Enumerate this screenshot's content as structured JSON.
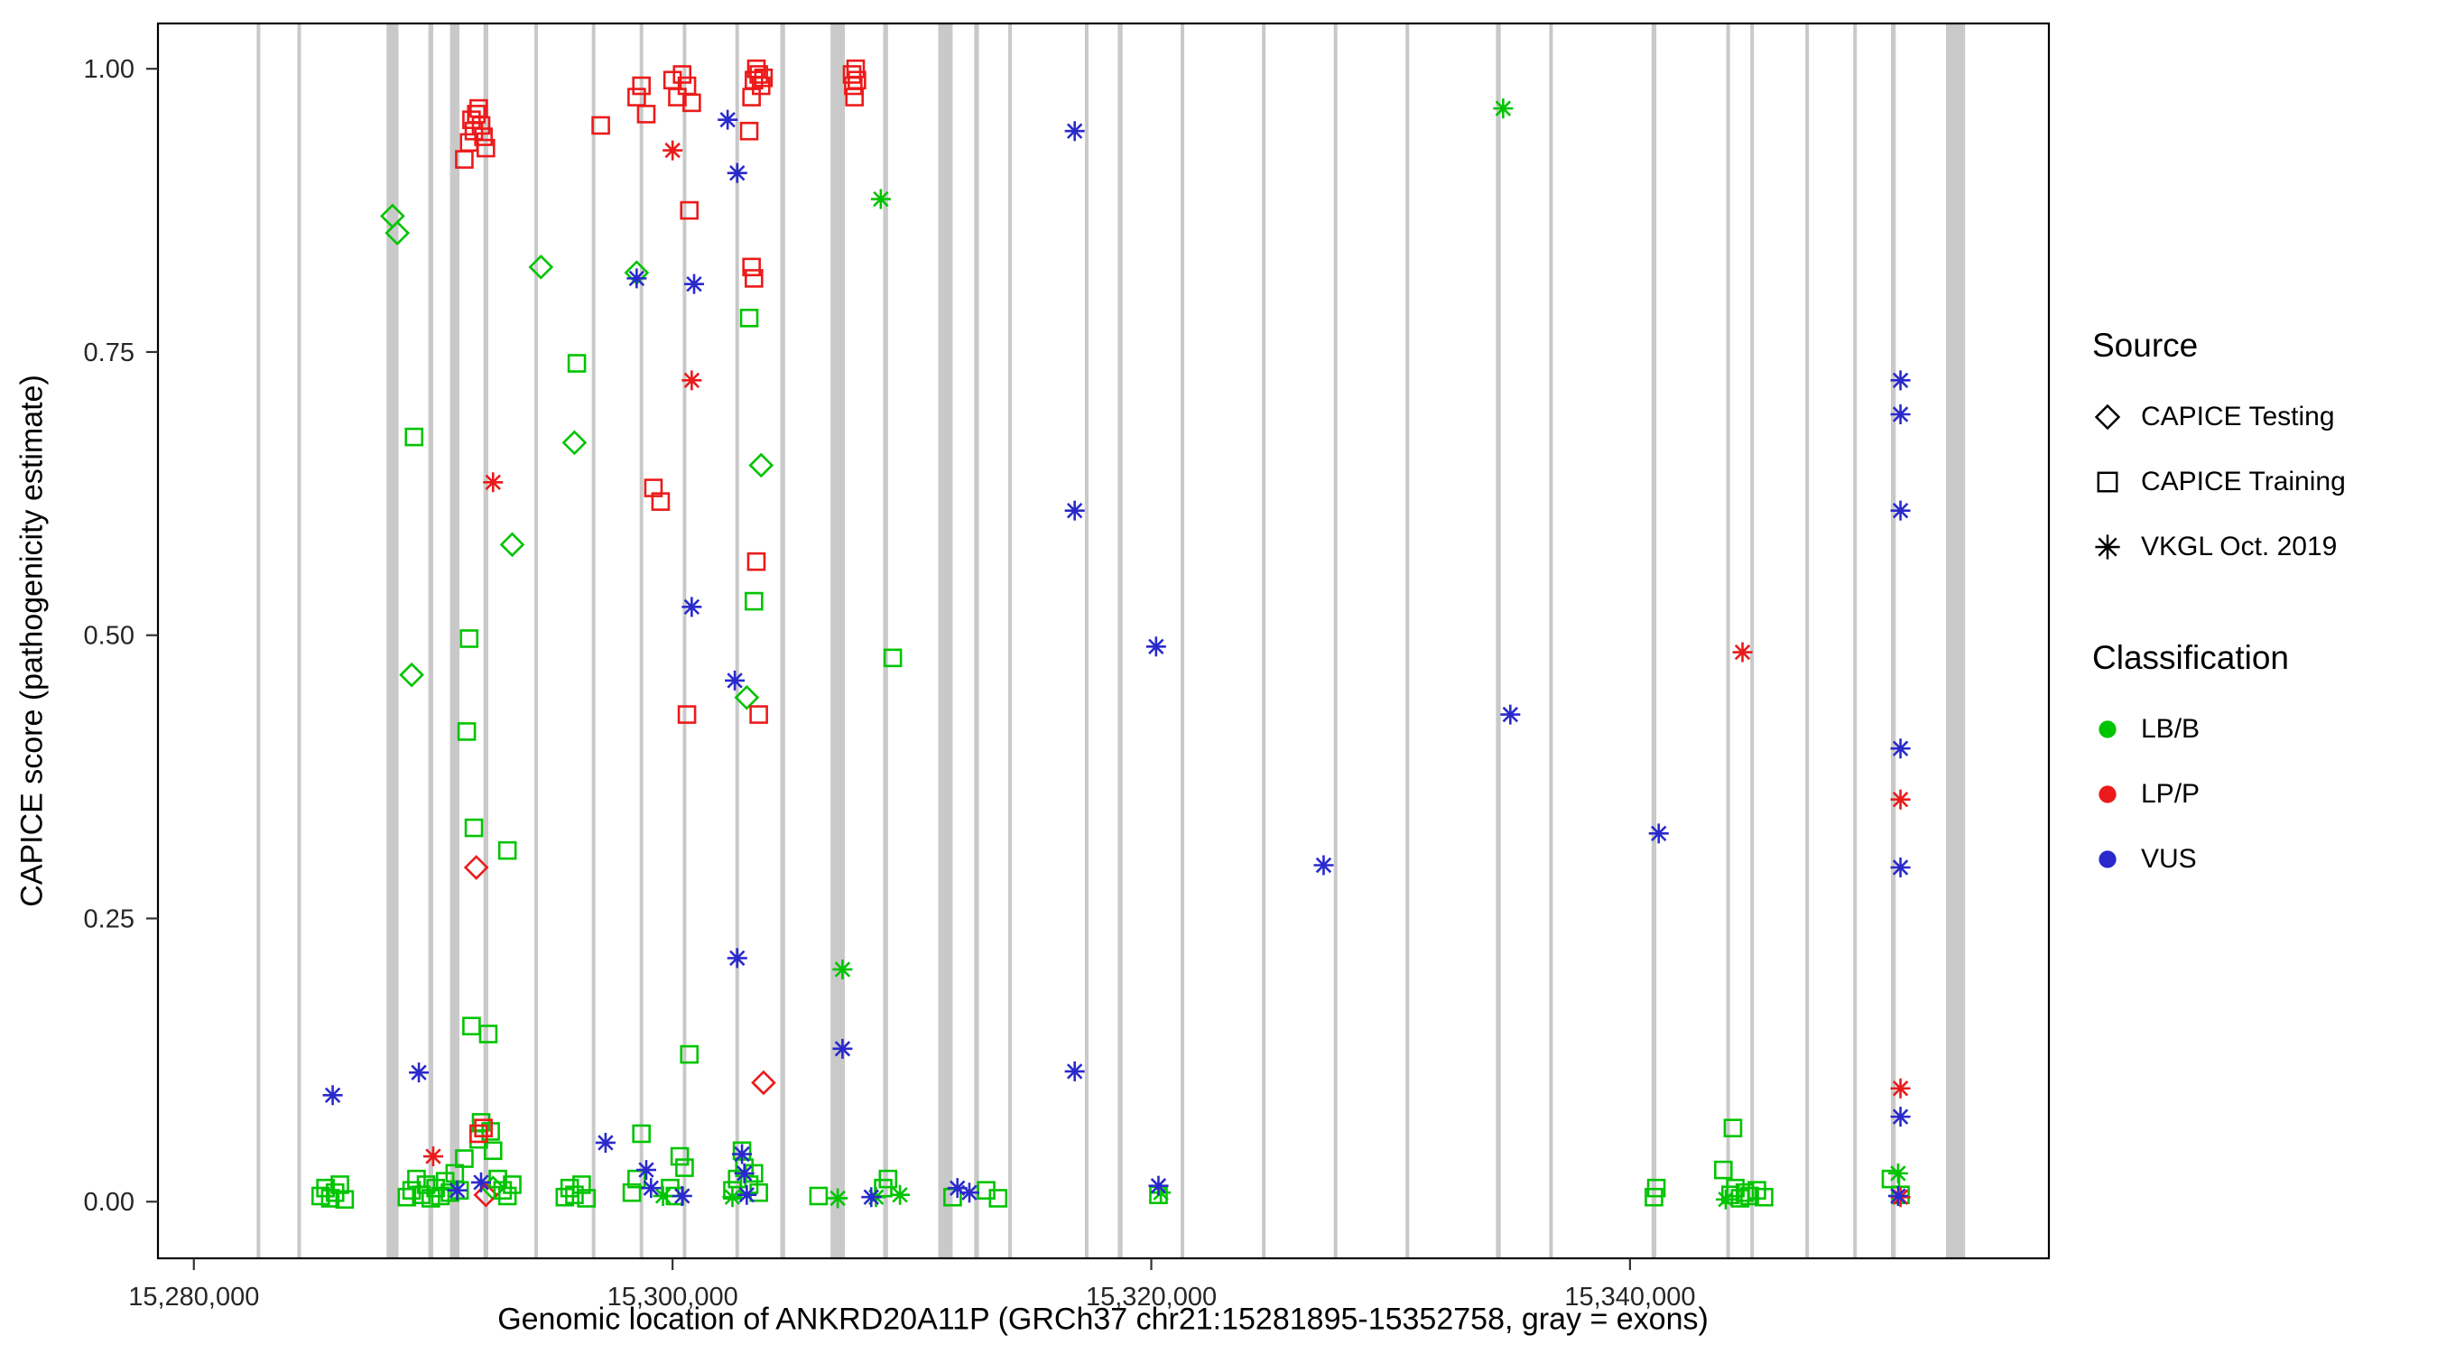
{
  "figure": {
    "xlabel": "Genomic location of ANKRD20A11P (GRCh37 chr21:15281895-15352758, gray = exons)",
    "ylabel": "CAPICE score (pathogenicity estimate)"
  },
  "legend": {
    "source": {
      "title": "Source",
      "items": [
        {
          "label": "CAPICE Testing",
          "shape": "diamond"
        },
        {
          "label": "CAPICE Training",
          "shape": "square"
        },
        {
          "label": "VKGL Oct. 2019",
          "shape": "asterisk"
        }
      ]
    },
    "classification": {
      "title": "Classification",
      "items": [
        {
          "label": "LB/B",
          "color_key": "lbb"
        },
        {
          "label": "LP/P",
          "color_key": "lpp"
        },
        {
          "label": "VUS",
          "color_key": "vus"
        }
      ]
    }
  },
  "chart_data": {
    "type": "scatter",
    "title": "",
    "xlabel": "Genomic location of ANKRD20A11P (GRCh37 chr21:15281895-15352758, gray = exons)",
    "ylabel": "CAPICE score (pathogenicity estimate)",
    "xlim": [
      15278500,
      15357500
    ],
    "ylim": [
      -0.05,
      1.04
    ],
    "grid": false,
    "legend_position": "right",
    "xticks": [
      {
        "v": 15280000,
        "label": "15,280,000"
      },
      {
        "v": 15300000,
        "label": "15,300,000"
      },
      {
        "v": 15320000,
        "label": "15,320,000"
      },
      {
        "v": 15340000,
        "label": "15,340,000"
      }
    ],
    "yticks": [
      {
        "v": 0.0,
        "label": "0.00"
      },
      {
        "v": 0.25,
        "label": "0.25"
      },
      {
        "v": 0.5,
        "label": "0.50"
      },
      {
        "v": 0.75,
        "label": "0.75"
      },
      {
        "v": 1.0,
        "label": "1.00"
      }
    ],
    "colors": {
      "lbb": "#00C400",
      "lpp": "#EC1A1A",
      "vus": "#2A2ACC",
      "exon": "#C9C9C9"
    },
    "exon_note": "gray vertical bars mark exon locations, [position, width_bp]",
    "exons": [
      [
        15282700,
        150
      ],
      [
        15284400,
        150
      ],
      [
        15288300,
        500
      ],
      [
        15289900,
        200
      ],
      [
        15290900,
        400
      ],
      [
        15292200,
        200
      ],
      [
        15294300,
        150
      ],
      [
        15296700,
        150
      ],
      [
        15298700,
        150
      ],
      [
        15300500,
        150
      ],
      [
        15302700,
        150
      ],
      [
        15304600,
        200
      ],
      [
        15306900,
        600
      ],
      [
        15308900,
        200
      ],
      [
        15311400,
        600
      ],
      [
        15312700,
        200
      ],
      [
        15314100,
        150
      ],
      [
        15317300,
        150
      ],
      [
        15318700,
        200
      ],
      [
        15321300,
        150
      ],
      [
        15324700,
        150
      ],
      [
        15327700,
        150
      ],
      [
        15330700,
        150
      ],
      [
        15334500,
        200
      ],
      [
        15336700,
        150
      ],
      [
        15341000,
        200
      ],
      [
        15344100,
        150
      ],
      [
        15345100,
        150
      ],
      [
        15347400,
        150
      ],
      [
        15349400,
        150
      ],
      [
        15351000,
        200
      ],
      [
        15353600,
        800
      ]
    ],
    "series": [
      {
        "name": "CAPICE Testing / LB/B",
        "source": "CAPICE Testing",
        "classification": "LB/B",
        "shape": "diamond",
        "color_key": "lbb",
        "points": [
          [
            15288300,
            0.87
          ],
          [
            15288500,
            0.855
          ],
          [
            15289100,
            0.465
          ],
          [
            15293300,
            0.58
          ],
          [
            15294500,
            0.825
          ],
          [
            15295900,
            0.67
          ],
          [
            15298500,
            0.82
          ],
          [
            15303100,
            0.445
          ],
          [
            15303700,
            0.65
          ],
          [
            15292500,
            0.012
          ]
        ]
      },
      {
        "name": "CAPICE Testing / LP/P",
        "source": "CAPICE Testing",
        "classification": "LP/P",
        "shape": "diamond",
        "color_key": "lpp",
        "points": [
          [
            15291800,
            0.295
          ],
          [
            15303800,
            0.105
          ],
          [
            15292200,
            0.006
          ]
        ]
      },
      {
        "name": "CAPICE Training / LB/B",
        "source": "CAPICE Training",
        "classification": "LB/B",
        "shape": "square",
        "color_key": "lbb",
        "points": [
          [
            15289200,
            0.675
          ],
          [
            15291500,
            0.497
          ],
          [
            15291400,
            0.415
          ],
          [
            15291700,
            0.33
          ],
          [
            15293100,
            0.31
          ],
          [
            15296000,
            0.74
          ],
          [
            15291600,
            0.155
          ],
          [
            15292300,
            0.148
          ],
          [
            15300700,
            0.13
          ],
          [
            15303200,
            0.78
          ],
          [
            15303400,
            0.53
          ],
          [
            15309200,
            0.48
          ],
          [
            15298700,
            0.06
          ],
          [
            15292000,
            0.07
          ],
          [
            15292400,
            0.062
          ],
          [
            15291900,
            0.055
          ],
          [
            15292500,
            0.045
          ],
          [
            15291300,
            0.038
          ],
          [
            15285300,
            0.005
          ],
          [
            15285500,
            0.012
          ],
          [
            15285700,
            0.003
          ],
          [
            15285900,
            0.008
          ],
          [
            15286100,
            0.015
          ],
          [
            15286300,
            0.002
          ],
          [
            15288900,
            0.004
          ],
          [
            15289100,
            0.01
          ],
          [
            15289300,
            0.02
          ],
          [
            15289500,
            0.006
          ],
          [
            15289700,
            0.015
          ],
          [
            15289900,
            0.003
          ],
          [
            15290100,
            0.012
          ],
          [
            15290300,
            0.005
          ],
          [
            15290500,
            0.018
          ],
          [
            15290700,
            0.008
          ],
          [
            15290900,
            0.025
          ],
          [
            15291100,
            0.01
          ],
          [
            15292700,
            0.02
          ],
          [
            15292900,
            0.01
          ],
          [
            15293100,
            0.005
          ],
          [
            15293300,
            0.015
          ],
          [
            15295500,
            0.004
          ],
          [
            15295700,
            0.012
          ],
          [
            15295900,
            0.006
          ],
          [
            15296200,
            0.015
          ],
          [
            15296400,
            0.003
          ],
          [
            15298300,
            0.008
          ],
          [
            15298500,
            0.02
          ],
          [
            15299900,
            0.012
          ],
          [
            15300100,
            0.005
          ],
          [
            15300300,
            0.04
          ],
          [
            15300500,
            0.03
          ],
          [
            15302500,
            0.01
          ],
          [
            15302700,
            0.02
          ],
          [
            15302900,
            0.045
          ],
          [
            15303000,
            0.03
          ],
          [
            15303200,
            0.015
          ],
          [
            15303400,
            0.025
          ],
          [
            15303600,
            0.008
          ],
          [
            15306100,
            0.005
          ],
          [
            15308800,
            0.012
          ],
          [
            15309000,
            0.02
          ],
          [
            15311700,
            0.004
          ],
          [
            15313100,
            0.01
          ],
          [
            15313600,
            0.003
          ],
          [
            15320300,
            0.006
          ],
          [
            15341000,
            0.004
          ],
          [
            15341100,
            0.012
          ],
          [
            15344200,
            0.006
          ],
          [
            15344400,
            0.012
          ],
          [
            15344600,
            0.003
          ],
          [
            15344800,
            0.008
          ],
          [
            15345000,
            0.005
          ],
          [
            15345300,
            0.01
          ],
          [
            15345600,
            0.004
          ],
          [
            15344300,
            0.065
          ],
          [
            15343900,
            0.028
          ],
          [
            15350900,
            0.02
          ],
          [
            15351300,
            0.006
          ]
        ]
      },
      {
        "name": "CAPICE Training / LP/P",
        "source": "CAPICE Training",
        "classification": "LP/P",
        "shape": "square",
        "color_key": "lpp",
        "points": [
          [
            15291300,
            0.92
          ],
          [
            15291500,
            0.935
          ],
          [
            15291600,
            0.955
          ],
          [
            15291700,
            0.945
          ],
          [
            15291800,
            0.96
          ],
          [
            15291900,
            0.965
          ],
          [
            15292000,
            0.95
          ],
          [
            15292100,
            0.94
          ],
          [
            15292200,
            0.93
          ],
          [
            15297000,
            0.95
          ],
          [
            15298500,
            0.975
          ],
          [
            15298700,
            0.985
          ],
          [
            15298900,
            0.96
          ],
          [
            15300000,
            0.99
          ],
          [
            15300200,
            0.975
          ],
          [
            15300400,
            0.995
          ],
          [
            15300600,
            0.985
          ],
          [
            15300800,
            0.97
          ],
          [
            15300700,
            0.875
          ],
          [
            15299200,
            0.63
          ],
          [
            15299500,
            0.618
          ],
          [
            15300600,
            0.43
          ],
          [
            15303200,
            0.945
          ],
          [
            15303300,
            0.975
          ],
          [
            15303400,
            0.99
          ],
          [
            15303500,
            1.0
          ],
          [
            15303600,
            0.995
          ],
          [
            15303700,
            0.985
          ],
          [
            15303800,
            0.992
          ],
          [
            15303300,
            0.825
          ],
          [
            15303400,
            0.815
          ],
          [
            15303500,
            0.565
          ],
          [
            15303600,
            0.43
          ],
          [
            15307500,
            0.995
          ],
          [
            15307550,
            0.985
          ],
          [
            15307600,
            0.975
          ],
          [
            15307650,
            1.0
          ],
          [
            15307700,
            0.99
          ],
          [
            15291900,
            0.06
          ],
          [
            15292100,
            0.065
          ]
        ]
      },
      {
        "name": "VKGL Oct. 2019 / LB/B",
        "source": "VKGL Oct. 2019",
        "classification": "LB/B",
        "shape": "asterisk",
        "color_key": "lbb",
        "points": [
          [
            15308700,
            0.885
          ],
          [
            15334700,
            0.965
          ],
          [
            15307100,
            0.205
          ],
          [
            15299600,
            0.005
          ],
          [
            15302500,
            0.004
          ],
          [
            15306900,
            0.003
          ],
          [
            15308500,
            0.004
          ],
          [
            15309500,
            0.006
          ],
          [
            15320400,
            0.008
          ],
          [
            15344000,
            0.002
          ],
          [
            15351200,
            0.025
          ]
        ]
      },
      {
        "name": "VKGL Oct. 2019 / LP/P",
        "source": "VKGL Oct. 2019",
        "classification": "LP/P",
        "shape": "asterisk",
        "color_key": "lpp",
        "points": [
          [
            15292500,
            0.635
          ],
          [
            15300000,
            0.928
          ],
          [
            15300800,
            0.725
          ],
          [
            15344700,
            0.485
          ],
          [
            15351300,
            0.355
          ],
          [
            15351300,
            0.1
          ],
          [
            15290000,
            0.04
          ],
          [
            15351300,
            0.004
          ]
        ]
      },
      {
        "name": "VKGL Oct. 2019 / VUS",
        "source": "VKGL Oct. 2019",
        "classification": "VUS",
        "shape": "asterisk",
        "color_key": "vus",
        "points": [
          [
            15285800,
            0.094
          ],
          [
            15289400,
            0.114
          ],
          [
            15298500,
            0.815
          ],
          [
            15300900,
            0.81
          ],
          [
            15302300,
            0.955
          ],
          [
            15302700,
            0.908
          ],
          [
            15300800,
            0.525
          ],
          [
            15302600,
            0.46
          ],
          [
            15302700,
            0.215
          ],
          [
            15307100,
            0.135
          ],
          [
            15316800,
            0.945
          ],
          [
            15316800,
            0.61
          ],
          [
            15316800,
            0.115
          ],
          [
            15320200,
            0.49
          ],
          [
            15327200,
            0.297
          ],
          [
            15335000,
            0.43
          ],
          [
            15341200,
            0.325
          ],
          [
            15351300,
            0.725
          ],
          [
            15351300,
            0.695
          ],
          [
            15351300,
            0.61
          ],
          [
            15351300,
            0.4
          ],
          [
            15351300,
            0.295
          ],
          [
            15351300,
            0.075
          ],
          [
            15297200,
            0.052
          ],
          [
            15292000,
            0.017
          ],
          [
            15291000,
            0.01
          ],
          [
            15298900,
            0.028
          ],
          [
            15299100,
            0.012
          ],
          [
            15300400,
            0.005
          ],
          [
            15302900,
            0.042
          ],
          [
            15303100,
            0.006
          ],
          [
            15303000,
            0.025
          ],
          [
            15308300,
            0.004
          ],
          [
            15311900,
            0.012
          ],
          [
            15312400,
            0.008
          ],
          [
            15320300,
            0.014
          ],
          [
            15351200,
            0.005
          ]
        ]
      }
    ]
  }
}
